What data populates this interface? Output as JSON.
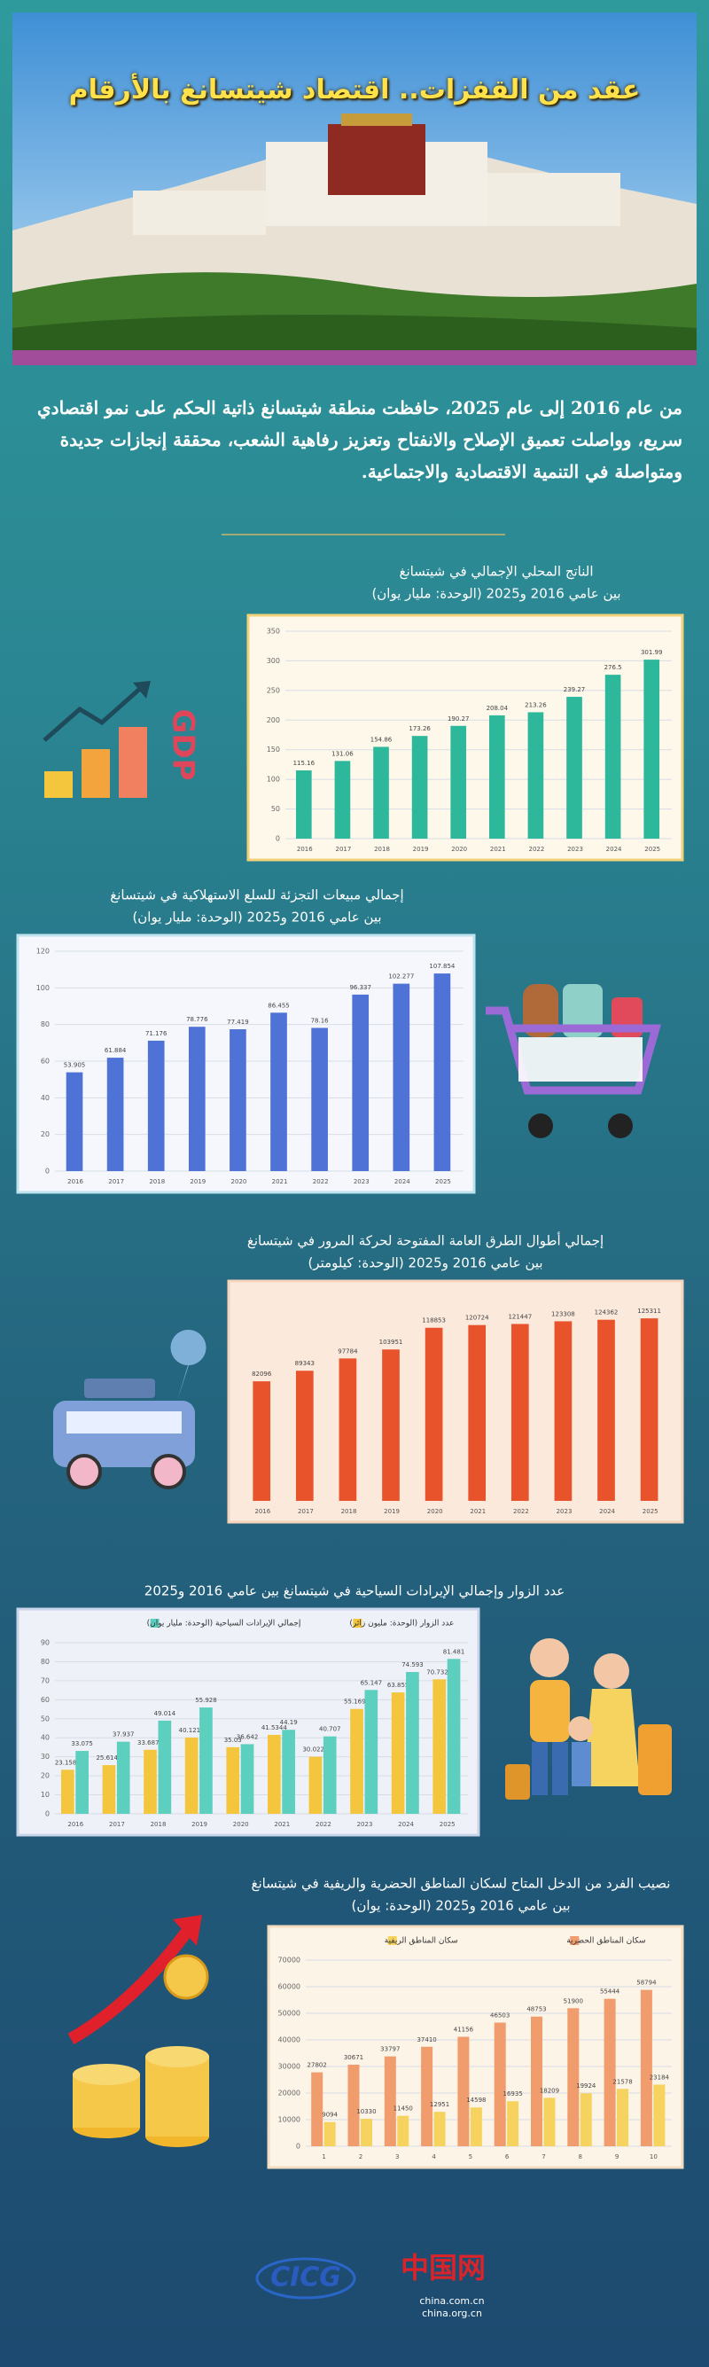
{
  "header": {
    "title": "عقد من القفزات.. اقتصاد شيتسانغ بالأرقام"
  },
  "intro": "من عام 2016 إلى عام 2025، حافظت منطقة شيتسانغ ذاتية الحكم على نمو اقتصادي سريع، وواصلت تعميق الإصلاح والانفتاح وتعزيز رفاهية الشعب، محققة إنجازات جديدة ومتواصلة في التنمية الاقتصادية والاجتماعية.",
  "icons": {
    "gdp": "GDP"
  },
  "footer": {
    "logo": "CICG",
    "site": "中国网",
    "url1": "china.com.cn",
    "url2": "china.org.cn"
  },
  "chart_data": [
    {
      "type": "bar",
      "title": "الناتج المحلي الإجمالي في شيتسانغ",
      "subtitle": "بين عامي 2016 و2025 (الوحدة: مليار يوان)",
      "categories": [
        "2016",
        "2017",
        "2018",
        "2019",
        "2020",
        "2021",
        "2022",
        "2023",
        "2024",
        "2025"
      ],
      "series": [
        {
          "color": "#2db89c",
          "values": [
            115.16,
            131.06,
            154.86,
            173.26,
            190.27,
            208.04,
            213.26,
            239.27,
            276.5,
            301.99
          ]
        }
      ],
      "ylim": [
        0,
        350
      ],
      "yticks": [
        0,
        50,
        100,
        150,
        200,
        250,
        300,
        350
      ],
      "grid": true
    },
    {
      "type": "bar",
      "title": "إجمالي مبيعات التجزئة للسلع الاستهلاكية في شيتسانغ",
      "subtitle": "بين عامي 2016 و2025 (الوحدة: مليار يوان)",
      "categories": [
        "2016",
        "2017",
        "2018",
        "2019",
        "2020",
        "2021",
        "2022",
        "2023",
        "2024",
        "2025"
      ],
      "series": [
        {
          "color": "#4f72d6",
          "values": [
            53.905,
            61.884,
            71.176,
            78.776,
            77.419,
            86.455,
            78.16,
            96.337,
            102.277,
            107.854
          ]
        }
      ],
      "ylim": [
        0,
        120
      ],
      "yticks": [
        0,
        20,
        40,
        60,
        80,
        100,
        120
      ],
      "grid": true
    },
    {
      "type": "bar",
      "title": "إجمالي أطوال الطرق العامة المفتوحة لحركة المرور في شيتسانغ",
      "subtitle": "بين عامي 2016 و2025 (الوحدة: كيلومتر)",
      "categories": [
        "2016",
        "2017",
        "2018",
        "2019",
        "2020",
        "2021",
        "2022",
        "2023",
        "2024",
        "2025"
      ],
      "series": [
        {
          "color": "#e8532c",
          "values": [
            82096,
            89343,
            97784,
            103951,
            118853,
            120724,
            121447,
            123308,
            124362,
            125311
          ]
        }
      ],
      "ylim": [
        0,
        140000
      ],
      "grid": false
    },
    {
      "type": "bar",
      "title": "عدد الزوار وإجمالي الإيرادات السياحية في شيتسانغ بين عامي 2016 و2025",
      "categories": [
        "2016",
        "2017",
        "2018",
        "2019",
        "2020",
        "2021",
        "2022",
        "2023",
        "2024",
        "2025"
      ],
      "series": [
        {
          "name": "عدد الزوار (الوحدة: مليون زائر)",
          "color": "#f4c63d",
          "values": [
            23.1584,
            25.6143,
            33.6873,
            40.1215,
            35.03,
            41.5344,
            30.0225,
            55.1698,
            63.855,
            70.7327
          ]
        },
        {
          "name": "إجمالي الإيرادات السياحية (الوحدة: مليار يوان)",
          "color": "#5dcfbf",
          "values": [
            33.075,
            37.937,
            49.014,
            55.928,
            36.642,
            44.19,
            40.707,
            65.147,
            74.593,
            81.481
          ]
        }
      ],
      "ylim": [
        0,
        90
      ],
      "yticks": [
        0,
        10,
        20,
        30,
        40,
        50,
        60,
        70,
        80,
        90
      ],
      "grid": true,
      "legend": "top"
    },
    {
      "type": "bar",
      "title": "نصيب الفرد من الدخل المتاح لسكان المناطق الحضرية والريفية في شيتسانغ",
      "subtitle": "بين عامي 2016 و2025 (الوحدة: يوان)",
      "categories": [
        "1",
        "2",
        "3",
        "4",
        "5",
        "6",
        "7",
        "8",
        "9",
        "10"
      ],
      "series": [
        {
          "name": "سكان المناطق الحضرية",
          "color": "#f19c6c",
          "values": [
            27802,
            30671,
            33797,
            37410,
            41156,
            46503,
            48753,
            51900,
            55444,
            58794
          ]
        },
        {
          "name": "سكان المناطق الريفية",
          "color": "#f6d35e",
          "values": [
            9094,
            10330,
            11450,
            12951,
            14598,
            16935,
            18209,
            19924,
            21578,
            23184
          ]
        }
      ],
      "ylim": [
        0,
        70000
      ],
      "yticks": [
        0,
        10000,
        20000,
        30000,
        40000,
        50000,
        60000,
        70000
      ],
      "grid": true,
      "legend": "top"
    }
  ]
}
